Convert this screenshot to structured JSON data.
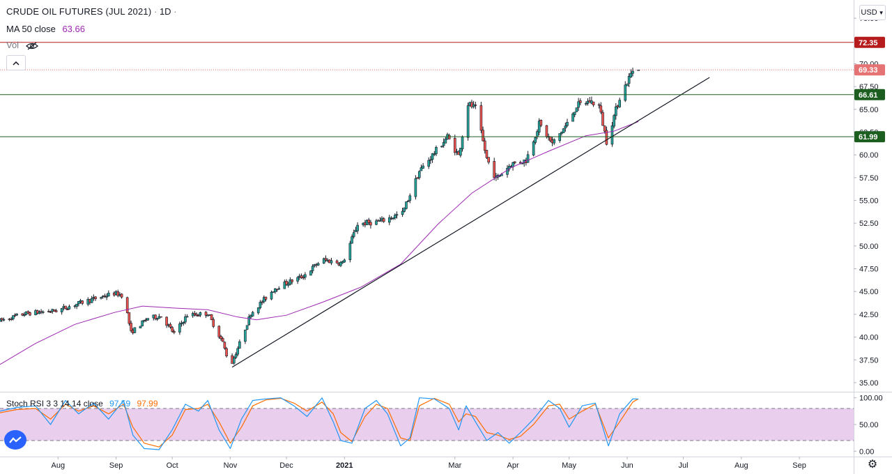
{
  "header": {
    "symbol": "CRUDE OIL FUTURES (JUL 2021)",
    "interval": "1D",
    "ma_label": "MA 50 close",
    "ma_value": "63.66",
    "vol_label": "Vol",
    "stoch_label": "Stoch RSI 3 3 14 14 close",
    "stoch_k": "97.59",
    "stoch_d": "97.99"
  },
  "currency_button": "USD",
  "colors": {
    "up": "#26a69a",
    "down": "#ef5350",
    "ma": "#9c27b0",
    "resistance": "#b71c1c",
    "support1": "#1b5e20",
    "support2": "#1b5e20",
    "last": "#e57373",
    "stoch_k": "#2196f3",
    "stoch_d": "#ff6d00",
    "band": "#e1bee7"
  },
  "chart_data": [
    {
      "type": "candlestick",
      "title": "CRUDE OIL FUTURES (JUL 2021)",
      "interval": "1D",
      "x_range": [
        "2020-07-01",
        "2021-09-30"
      ],
      "ylim": [
        34.0,
        77.0
      ],
      "y_ticks": [
        "35.00",
        "37.50",
        "40.00",
        "42.50",
        "45.00",
        "47.50",
        "50.00",
        "52.50",
        "55.00",
        "57.50",
        "60.00",
        "62.50",
        "65.00",
        "67.50",
        "70.00",
        "72.50",
        "75.00"
      ],
      "x_ticks": [
        "Aug",
        "Sep",
        "Oct",
        "Nov",
        "Dec",
        "2021",
        "Mar",
        "Apr",
        "May",
        "Jun",
        "Jul",
        "Aug",
        "Sep"
      ],
      "x_tick_dates": [
        "2020-08-01",
        "2020-09-01",
        "2020-10-01",
        "2020-11-01",
        "2020-12-01",
        "2021-01-01",
        "2021-03-01",
        "2021-04-01",
        "2021-05-01",
        "2021-06-01",
        "2021-07-01",
        "2021-08-01",
        "2021-09-01"
      ],
      "price_anchors": [
        [
          "2020-07-01",
          41.8
        ],
        [
          "2020-07-15",
          42.6
        ],
        [
          "2020-07-31",
          42.9
        ],
        [
          "2020-08-15",
          43.9
        ],
        [
          "2020-08-31",
          44.8
        ],
        [
          "2020-09-05",
          44.6
        ],
        [
          "2020-09-09",
          40.5
        ],
        [
          "2020-09-18",
          42.1
        ],
        [
          "2020-09-25",
          42.3
        ],
        [
          "2020-10-02",
          40.4
        ],
        [
          "2020-10-09",
          42.4
        ],
        [
          "2020-10-20",
          42.6
        ],
        [
          "2020-10-28",
          39.4
        ],
        [
          "2020-11-01",
          36.7
        ],
        [
          "2020-11-06",
          39.3
        ],
        [
          "2020-11-12",
          42.6
        ],
        [
          "2020-11-25",
          45.4
        ],
        [
          "2020-12-10",
          46.7
        ],
        [
          "2020-12-20",
          48.5
        ],
        [
          "2020-12-31",
          48.1
        ],
        [
          "2021-01-08",
          52.4
        ],
        [
          "2021-01-20",
          52.7
        ],
        [
          "2021-02-01",
          53.6
        ],
        [
          "2021-02-10",
          58.2
        ],
        [
          "2021-02-25",
          62.0
        ],
        [
          "2021-03-03",
          59.9
        ],
        [
          "2021-03-08",
          65.6
        ],
        [
          "2021-03-12",
          65.1
        ],
        [
          "2021-03-18",
          59.6
        ],
        [
          "2021-03-23",
          57.4
        ],
        [
          "2021-03-31",
          59.0
        ],
        [
          "2021-04-08",
          59.4
        ],
        [
          "2021-04-15",
          63.4
        ],
        [
          "2021-04-22",
          61.2
        ],
        [
          "2021-04-30",
          63.4
        ],
        [
          "2021-05-05",
          65.4
        ],
        [
          "2021-05-12",
          65.9
        ],
        [
          "2021-05-17",
          65.4
        ],
        [
          "2021-05-21",
          61.5
        ],
        [
          "2021-05-28",
          66.3
        ],
        [
          "2021-06-04",
          69.3
        ],
        [
          "2021-06-07",
          69.33
        ]
      ],
      "ma50": [
        [
          "2020-07-01",
          37.0
        ],
        [
          "2020-07-20",
          39.3
        ],
        [
          "2020-08-10",
          41.4
        ],
        [
          "2020-08-31",
          42.7
        ],
        [
          "2020-09-15",
          43.4
        ],
        [
          "2020-10-01",
          43.2
        ],
        [
          "2020-10-20",
          43.0
        ],
        [
          "2020-11-05",
          42.2
        ],
        [
          "2020-11-15",
          41.9
        ],
        [
          "2020-12-01",
          42.4
        ],
        [
          "2020-12-20",
          43.8
        ],
        [
          "2021-01-10",
          45.5
        ],
        [
          "2021-01-31",
          48.0
        ],
        [
          "2021-02-20",
          52.4
        ],
        [
          "2021-03-10",
          55.8
        ],
        [
          "2021-03-31",
          58.6
        ],
        [
          "2021-04-20",
          60.4
        ],
        [
          "2021-05-10",
          62.1
        ],
        [
          "2021-05-25",
          62.6
        ],
        [
          "2021-06-07",
          63.66
        ]
      ],
      "trendline": [
        [
          "2020-11-02",
          36.7
        ],
        [
          "2021-07-15",
          68.5
        ]
      ],
      "levels": [
        {
          "value": 72.35,
          "label": "72.35",
          "role": "resistance"
        },
        {
          "value": 66.61,
          "label": "66.61",
          "role": "support1"
        },
        {
          "value": 61.99,
          "label": "61.99",
          "role": "support2"
        }
      ],
      "last_price": {
        "value": 69.33,
        "label": "69.33"
      }
    },
    {
      "type": "line",
      "title": "Stoch RSI 3 3 14 14 close",
      "ylim": [
        -10,
        110
      ],
      "y_ticks": [
        "100.00",
        "50.00",
        "0.00"
      ],
      "band": [
        20,
        80
      ],
      "series": [
        {
          "name": "K",
          "values": [
            [
              "2020-07-01",
              75
            ],
            [
              "2020-07-10",
              82
            ],
            [
              "2020-07-20",
              85
            ],
            [
              "2020-07-28",
              50
            ],
            [
              "2020-08-05",
              95
            ],
            [
              "2020-08-12",
              70
            ],
            [
              "2020-08-20",
              90
            ],
            [
              "2020-08-28",
              60
            ],
            [
              "2020-09-05",
              95
            ],
            [
              "2020-09-10",
              30
            ],
            [
              "2020-09-16",
              5
            ],
            [
              "2020-09-24",
              3
            ],
            [
              "2020-10-01",
              40
            ],
            [
              "2020-10-08",
              88
            ],
            [
              "2020-10-15",
              75
            ],
            [
              "2020-10-20",
              95
            ],
            [
              "2020-10-26",
              40
            ],
            [
              "2020-11-01",
              5
            ],
            [
              "2020-11-07",
              60
            ],
            [
              "2020-11-13",
              95
            ],
            [
              "2020-11-20",
              98
            ],
            [
              "2020-11-28",
              100
            ],
            [
              "2020-12-05",
              85
            ],
            [
              "2020-12-12",
              65
            ],
            [
              "2020-12-20",
              100
            ],
            [
              "2020-12-26",
              55
            ],
            [
              "2020-12-30",
              20
            ],
            [
              "2021-01-05",
              15
            ],
            [
              "2021-01-12",
              80
            ],
            [
              "2021-01-18",
              95
            ],
            [
              "2021-01-24",
              70
            ],
            [
              "2021-01-31",
              10
            ],
            [
              "2021-02-05",
              25
            ],
            [
              "2021-02-10",
              100
            ],
            [
              "2021-02-18",
              98
            ],
            [
              "2021-02-26",
              80
            ],
            [
              "2021-03-03",
              40
            ],
            [
              "2021-03-07",
              85
            ],
            [
              "2021-03-12",
              55
            ],
            [
              "2021-03-18",
              20
            ],
            [
              "2021-03-24",
              35
            ],
            [
              "2021-03-30",
              15
            ],
            [
              "2021-04-05",
              35
            ],
            [
              "2021-04-12",
              60
            ],
            [
              "2021-04-20",
              95
            ],
            [
              "2021-04-26",
              80
            ],
            [
              "2021-05-01",
              45
            ],
            [
              "2021-05-08",
              85
            ],
            [
              "2021-05-15",
              90
            ],
            [
              "2021-05-22",
              10
            ],
            [
              "2021-05-28",
              70
            ],
            [
              "2021-06-04",
              98
            ],
            [
              "2021-06-07",
              97.59
            ]
          ]
        },
        {
          "name": "D",
          "values": [
            [
              "2020-07-01",
              72
            ],
            [
              "2020-07-10",
              78
            ],
            [
              "2020-07-20",
              80
            ],
            [
              "2020-07-28",
              60
            ],
            [
              "2020-08-05",
              88
            ],
            [
              "2020-08-12",
              75
            ],
            [
              "2020-08-20",
              85
            ],
            [
              "2020-08-28",
              70
            ],
            [
              "2020-09-05",
              88
            ],
            [
              "2020-09-10",
              45
            ],
            [
              "2020-09-16",
              15
            ],
            [
              "2020-09-24",
              8
            ],
            [
              "2020-10-01",
              30
            ],
            [
              "2020-10-08",
              78
            ],
            [
              "2020-10-15",
              80
            ],
            [
              "2020-10-20",
              88
            ],
            [
              "2020-10-26",
              55
            ],
            [
              "2020-11-01",
              15
            ],
            [
              "2020-11-07",
              45
            ],
            [
              "2020-11-13",
              85
            ],
            [
              "2020-11-20",
              96
            ],
            [
              "2020-11-28",
              99
            ],
            [
              "2020-12-05",
              90
            ],
            [
              "2020-12-12",
              75
            ],
            [
              "2020-12-20",
              92
            ],
            [
              "2020-12-26",
              70
            ],
            [
              "2020-12-30",
              35
            ],
            [
              "2021-01-05",
              18
            ],
            [
              "2021-01-12",
              65
            ],
            [
              "2021-01-18",
              88
            ],
            [
              "2021-01-24",
              80
            ],
            [
              "2021-01-31",
              25
            ],
            [
              "2021-02-05",
              20
            ],
            [
              "2021-02-10",
              85
            ],
            [
              "2021-02-18",
              99
            ],
            [
              "2021-02-26",
              88
            ],
            [
              "2021-03-03",
              55
            ],
            [
              "2021-03-07",
              70
            ],
            [
              "2021-03-12",
              65
            ],
            [
              "2021-03-18",
              35
            ],
            [
              "2021-03-24",
              30
            ],
            [
              "2021-03-30",
              22
            ],
            [
              "2021-04-05",
              28
            ],
            [
              "2021-04-12",
              50
            ],
            [
              "2021-04-20",
              85
            ],
            [
              "2021-04-26",
              88
            ],
            [
              "2021-05-01",
              60
            ],
            [
              "2021-05-08",
              75
            ],
            [
              "2021-05-15",
              88
            ],
            [
              "2021-05-22",
              25
            ],
            [
              "2021-05-28",
              55
            ],
            [
              "2021-06-04",
              92
            ],
            [
              "2021-06-07",
              97.99
            ]
          ]
        }
      ]
    }
  ]
}
